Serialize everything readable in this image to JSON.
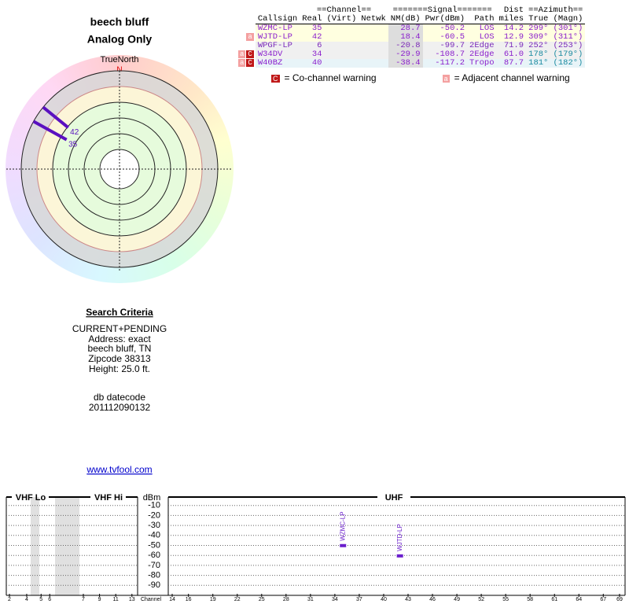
{
  "header": {
    "title": "beech bluff",
    "subtitle": "Analog Only"
  },
  "compass": {
    "label": "TrueNorth",
    "north": "N"
  },
  "table": {
    "groups": [
      "==Channel==",
      "=======Signal=======",
      "Dist",
      "==Azimuth=="
    ],
    "columns": [
      "Callsign",
      "Real",
      "(Virt)",
      "Netwk",
      "NM(dB)",
      "Pwr(dBm)",
      "Path",
      "miles",
      "True",
      "(Magn)"
    ],
    "rows": [
      {
        "badges": [],
        "callsign": "WZMC-LP",
        "real": 35,
        "nm": 28.7,
        "pwr": -50.2,
        "path": "LOS",
        "dist": 14.2,
        "true": {
          "value": 299,
          "label": "299°"
        },
        "magn": "(301°)",
        "color": "#8a1ecc",
        "bg": "#ffffe0"
      },
      {
        "badges": [
          "a"
        ],
        "callsign": "WJTD-LP",
        "real": 42,
        "nm": 18.4,
        "pwr": -60.5,
        "path": "LOS",
        "dist": 12.9,
        "true": {
          "value": 309,
          "label": "309°"
        },
        "magn": "(311°)",
        "color": "#8a1ecc",
        "bg": "#ffffe0"
      },
      {
        "badges": [],
        "callsign": "WPGF-LP",
        "real": 6,
        "nm": -20.8,
        "pwr": -99.7,
        "path": "2Edge",
        "dist": 71.9,
        "true": {
          "value": 252,
          "label": "252°"
        },
        "magn": "(253°)",
        "color": "#7a2ab8",
        "bg": "#f0f0f0"
      },
      {
        "badges": [
          "a",
          "C"
        ],
        "callsign": "W34DV",
        "real": 34,
        "nm": -29.9,
        "pwr": -108.7,
        "path": "2Edge",
        "dist": {
          "value": 61,
          "label": "61.0"
        },
        "true": {
          "value": 178,
          "label": "178°"
        },
        "magn": "(179°)",
        "color": "#8a1ecc",
        "bg": "#f0f0f0"
      },
      {
        "badges": [
          "a",
          "C"
        ],
        "callsign": "W40BZ",
        "real": 40,
        "nm": -38.4,
        "pwr": -117.2,
        "path": "Tropo",
        "dist": 87.7,
        "true": {
          "value": 181,
          "label": "181°"
        },
        "magn": "(182°)",
        "color": "#8a1ecc",
        "bg": "#e8f4f8"
      }
    ]
  },
  "legend": {
    "cochannel": {
      "badge": "C",
      "text": "= Co-channel warning"
    },
    "adjacent": {
      "badge": "a",
      "text": "= Adjacent channel warning"
    }
  },
  "search": {
    "title": "Search Criteria",
    "lines": [
      "CURRENT+PENDING",
      "Address: exact",
      "beech bluff, TN",
      "Zipcode 38313",
      "Height: 25.0 ft."
    ],
    "datecode_title": "db datecode",
    "datecode": "201112090132",
    "link": "www.tvfool.com"
  },
  "spectrum": {
    "sections": [
      "VHF Lo",
      "VHF Hi",
      "dBm",
      "UHF"
    ],
    "ylim": [
      -100,
      0
    ],
    "yticks": [
      -10,
      -20,
      -30,
      -40,
      -50,
      -60,
      -70,
      -80,
      -90
    ],
    "vhf_lo": [
      2,
      4,
      5,
      6
    ],
    "vhf_hi": [
      7,
      9,
      11,
      13
    ],
    "axis_label": "Channel",
    "uhf": [
      14,
      16,
      19,
      22,
      25,
      28,
      31,
      34,
      37,
      40,
      43,
      46,
      49,
      52,
      55,
      58,
      61,
      64,
      67,
      69
    ],
    "bar_color": "#6a1ecc"
  }
}
